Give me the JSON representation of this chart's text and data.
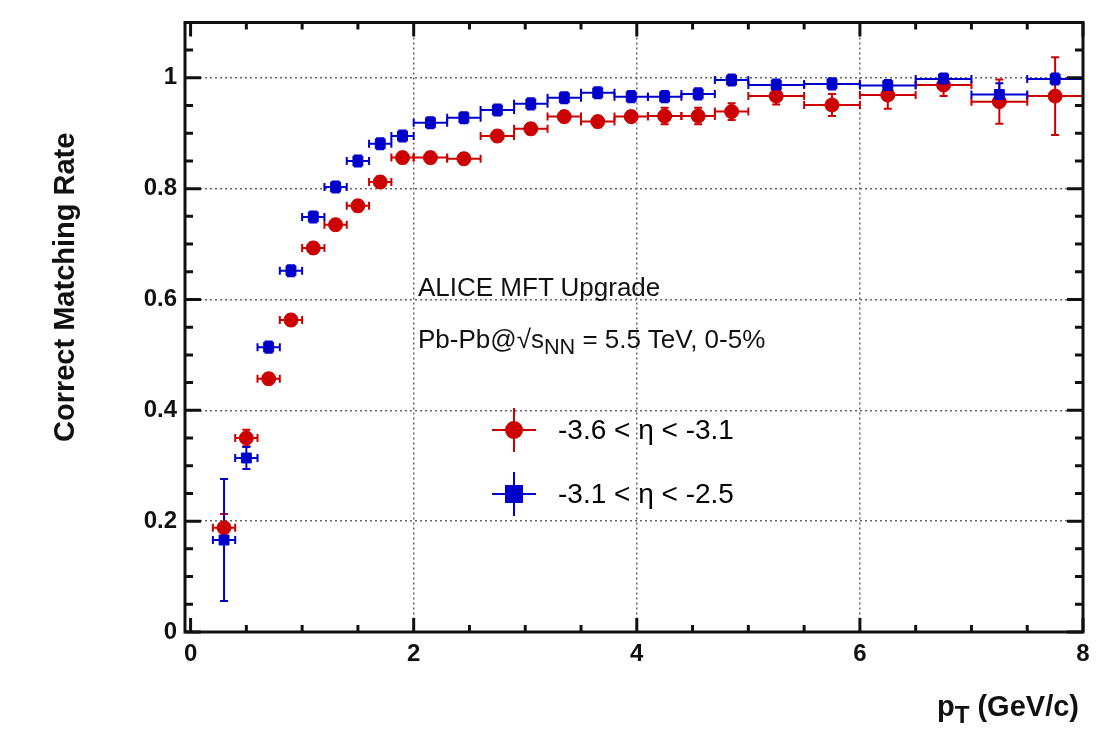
{
  "chart_data": {
    "type": "scatter",
    "xlabel": "p$_{T}$ (GeV/c)",
    "ylabel": "Correct Matching Rate",
    "annotations": [
      "ALICE MFT Upgrade",
      "Pb-Pb@√s$_{NN}$ = 5.5 TeV, 0-5%"
    ],
    "x": [
      0.3,
      0.5,
      0.7,
      0.9,
      1.1,
      1.3,
      1.5,
      1.7,
      1.9,
      2.15,
      2.45,
      2.75,
      3.05,
      3.35,
      3.65,
      3.95,
      4.25,
      4.55,
      4.85,
      5.25,
      5.75,
      6.25,
      6.75,
      7.25,
      7.75
    ],
    "xlim": [
      -0.05,
      8
    ],
    "ylim": [
      0,
      1.1
    ],
    "xticks": [
      0,
      {
        "value": 0.5,
        "label": null
      },
      {
        "value": 1,
        "label": null
      },
      {
        "value": 1.5,
        "label": null
      },
      2,
      {
        "value": 2.5,
        "label": null
      },
      {
        "value": 3,
        "label": null
      },
      {
        "value": 3.5,
        "label": null
      },
      4,
      {
        "value": 4.5,
        "label": null
      },
      {
        "value": 5,
        "label": null
      },
      {
        "value": 5.5,
        "label": null
      },
      6,
      {
        "value": 6.5,
        "label": null
      },
      {
        "value": 7,
        "label": null
      },
      {
        "value": 7.5,
        "label": null
      },
      8
    ],
    "yticks": [
      0,
      {
        "value": 0.05,
        "label": null
      },
      {
        "value": 0.1,
        "label": null
      },
      {
        "value": 0.15,
        "label": null
      },
      0.2,
      {
        "value": 0.25,
        "label": null
      },
      {
        "value": 0.3,
        "label": null
      },
      {
        "value": 0.35,
        "label": null
      },
      0.4,
      {
        "value": 0.45,
        "label": null
      },
      {
        "value": 0.5,
        "label": null
      },
      {
        "value": 0.55,
        "label": null
      },
      0.6,
      {
        "value": 0.65,
        "label": null
      },
      {
        "value": 0.7,
        "label": null
      },
      {
        "value": 0.75,
        "label": null
      },
      0.8,
      {
        "value": 0.85,
        "label": null
      },
      {
        "value": 0.9,
        "label": null
      },
      {
        "value": 0.95,
        "label": null
      },
      1,
      {
        "value": 1.05,
        "label": null
      }
    ],
    "grid": true,
    "legend": "center",
    "series": [
      {
        "name": "-3.6 < η < -3.1",
        "color": "#cc0000",
        "marker": "circle",
        "values": [
          0.188,
          0.35,
          0.457,
          0.563,
          0.693,
          0.735,
          0.769,
          0.812,
          0.856,
          0.856,
          0.854,
          0.895,
          0.908,
          0.93,
          0.921,
          0.93,
          0.931,
          0.931,
          0.939,
          0.967,
          0.951,
          0.969,
          0.987,
          0.957,
          0.967
        ],
        "errors": [
          0.025,
          0.015,
          0.01,
          0.01,
          0.01,
          0.01,
          0.01,
          0.01,
          0.01,
          0.01,
          0.01,
          0.01,
          0.01,
          0.01,
          0.01,
          0.01,
          0.015,
          0.015,
          0.015,
          0.015,
          0.02,
          0.025,
          0.02,
          0.04,
          0.07
        ],
        "xerrors": [
          0.1,
          0.1,
          0.1,
          0.1,
          0.1,
          0.1,
          0.1,
          0.1,
          0.1,
          0.15,
          0.15,
          0.15,
          0.15,
          0.15,
          0.15,
          0.15,
          0.15,
          0.15,
          0.15,
          0.25,
          0.25,
          0.25,
          0.25,
          0.25,
          0.25
        ]
      },
      {
        "name": "-3.1 < η < -2.5",
        "color": "#0000cc",
        "marker": "square",
        "values": [
          0.166,
          0.314,
          0.514,
          0.652,
          0.749,
          0.803,
          0.85,
          0.881,
          0.895,
          0.919,
          0.928,
          0.942,
          0.953,
          0.964,
          0.973,
          0.966,
          0.966,
          0.971,
          0.996,
          0.987,
          0.989,
          0.986,
          0.998,
          0.97,
          0.998
        ],
        "errors": [
          0.11,
          0.02,
          0.01,
          0.01,
          0.01,
          0.01,
          0.01,
          0.01,
          0.01,
          0.01,
          0.01,
          0.01,
          0.01,
          0.01,
          0.01,
          0.01,
          0.01,
          0.01,
          0.01,
          0.01,
          0.01,
          0.01,
          0.01,
          0.02,
          0.01
        ],
        "xerrors": [
          0.1,
          0.1,
          0.1,
          0.1,
          0.1,
          0.1,
          0.1,
          0.1,
          0.1,
          0.15,
          0.15,
          0.15,
          0.15,
          0.15,
          0.15,
          0.15,
          0.15,
          0.15,
          0.15,
          0.25,
          0.25,
          0.25,
          0.25,
          0.25,
          0.25
        ]
      }
    ]
  }
}
